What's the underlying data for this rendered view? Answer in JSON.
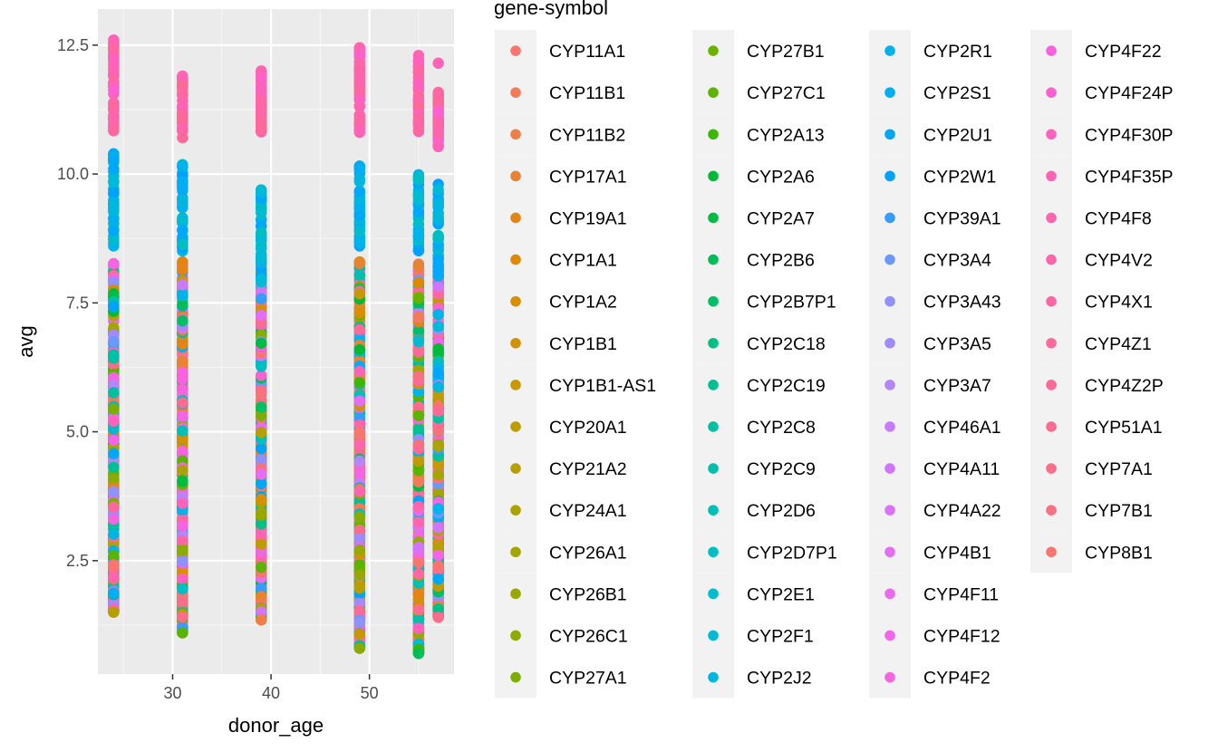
{
  "chart_data": {
    "type": "scatter",
    "xlabel": "donor_age",
    "ylabel": "avg",
    "xlim": [
      22.4,
      58.6
    ],
    "ylim": [
      0.3,
      13.2
    ],
    "x_ticks": [
      30,
      40,
      50
    ],
    "y_ticks": [
      2.5,
      5.0,
      7.5,
      10.0,
      12.5
    ],
    "y_tick_labels": [
      "2.5",
      "5.0",
      "7.5",
      "10.0",
      "12.5"
    ],
    "grid": true,
    "legend": {
      "title": "gene-symbol",
      "placement": "right",
      "columns": 4
    },
    "donor_ages": [
      24,
      31,
      39,
      49,
      55,
      57
    ],
    "gene_symbols": [
      "CYP11A1",
      "CYP11B1",
      "CYP11B2",
      "CYP17A1",
      "CYP19A1",
      "CYP1A1",
      "CYP1A2",
      "CYP1B1",
      "CYP1B1-AS1",
      "CYP20A1",
      "CYP21A2",
      "CYP24A1",
      "CYP26A1",
      "CYP26B1",
      "CYP26C1",
      "CYP27A1",
      "CYP27B1",
      "CYP27C1",
      "CYP2A13",
      "CYP2A6",
      "CYP2A7",
      "CYP2B6",
      "CYP2B7P1",
      "CYP2C18",
      "CYP2C19",
      "CYP2C8",
      "CYP2C9",
      "CYP2D6",
      "CYP2D7P1",
      "CYP2E1",
      "CYP2F1",
      "CYP2J2",
      "CYP2R1",
      "CYP2S1",
      "CYP2U1",
      "CYP2W1",
      "CYP39A1",
      "CYP3A4",
      "CYP3A43",
      "CYP3A5",
      "CYP3A7",
      "CYP46A1",
      "CYP4A11",
      "CYP4A22",
      "CYP4B1",
      "CYP4F11",
      "CYP4F12",
      "CYP4F2",
      "CYP4F22",
      "CYP4F24P",
      "CYP4F30P",
      "CYP4F35P",
      "CYP4F8",
      "CYP4V2",
      "CYP4X1",
      "CYP4Z1",
      "CYP4Z2P",
      "CYP51A1",
      "CYP7A1",
      "CYP7B1",
      "CYP8B1"
    ],
    "colors": [
      "#F8766D",
      "#F47B5A",
      "#EF7F47",
      "#EA8331",
      "#E48513",
      "#DD8A00",
      "#D89000",
      "#D19400",
      "#C99800",
      "#C09B00",
      "#B69F00",
      "#ABA300",
      "#A3A500",
      "#97A800",
      "#8AAB00",
      "#7CAE00",
      "#6BB100",
      "#5AB400",
      "#3EB700",
      "#00BA38",
      "#00BC43",
      "#00BE57",
      "#00BF65",
      "#00C087",
      "#00C094",
      "#00C0A0",
      "#00C0AC",
      "#00BFB7",
      "#00BFC4",
      "#00BCCE",
      "#00BAD8",
      "#00B6E0",
      "#00B3EA",
      "#00AEF3",
      "#00A8FA",
      "#00A2FF",
      "#349DFF",
      "#6A98FF",
      "#8F91FF",
      "#A18AFF",
      "#B385FF",
      "#C77CFF",
      "#D175FF",
      "#DB72FB",
      "#E36EF4",
      "#EA6BEE",
      "#F066E7",
      "#F564E3",
      "#F962DE",
      "#FD61D1",
      "#FF62BC",
      "#FF63B6",
      "#FF64AF",
      "#FF65AA",
      "#FF67A4",
      "#FF689E",
      "#FE6A97",
      "#FC6C90",
      "#FA6E89",
      "#F87181",
      "#F8766D"
    ],
    "series": [
      {
        "age": 24,
        "min": 1.5,
        "max": 12.6,
        "pink_top": [
          10.8,
          12.6
        ],
        "teal_top": [
          8.6,
          10.45
        ]
      },
      {
        "age": 31,
        "min": 1.1,
        "max": 11.9,
        "pink_top": [
          10.7,
          11.9
        ],
        "teal_top": [
          8.5,
          10.2
        ]
      },
      {
        "age": 39,
        "min": 1.35,
        "max": 12.0,
        "pink_top": [
          10.8,
          12.0
        ],
        "teal_top": [
          7.8,
          9.7
        ]
      },
      {
        "age": 49,
        "min": 0.8,
        "max": 12.45,
        "pink_top": [
          10.8,
          12.45
        ],
        "teal_top": [
          8.6,
          10.2
        ]
      },
      {
        "age": 55,
        "min": 0.7,
        "max": 12.3,
        "pink_top": [
          10.8,
          12.3
        ],
        "teal_top": [
          8.5,
          10.0
        ]
      },
      {
        "age": 57,
        "min": 1.4,
        "max": 12.15,
        "pink_top": [
          10.5,
          11.6
        ],
        "teal_top": [
          8.0,
          9.8
        ]
      }
    ]
  }
}
